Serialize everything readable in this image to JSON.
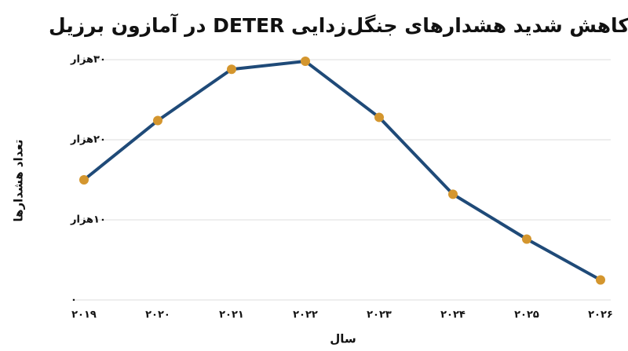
{
  "chart_data": {
    "type": "line",
    "title": "کاهش شدید هشدارهای جنگل‌زدایی DETER در آمازون برزیل",
    "x_label": "سال",
    "y_label": "تعداد هشدارها",
    "categories": [
      "۲۰۱۹",
      "۲۰۲۰",
      "۲۰۲۱",
      "۲۰۲۲",
      "۲۰۲۳",
      "۲۰۲۴",
      "۲۰۲۵",
      "۲۰۲۶"
    ],
    "values": [
      15000,
      22400,
      28800,
      29800,
      22800,
      13200,
      7600,
      2500
    ],
    "color": "#1f4a78",
    "marker_color": "#d4962e",
    "ylim": [
      0,
      30000
    ],
    "yticks": [
      {
        "value": 0,
        "label": "۰"
      },
      {
        "value": 10000,
        "label": "۱۰هزار"
      },
      {
        "value": 20000,
        "label": "۲۰هزار"
      },
      {
        "value": 30000,
        "label": "۳۰هزار"
      }
    ],
    "grid": true
  }
}
